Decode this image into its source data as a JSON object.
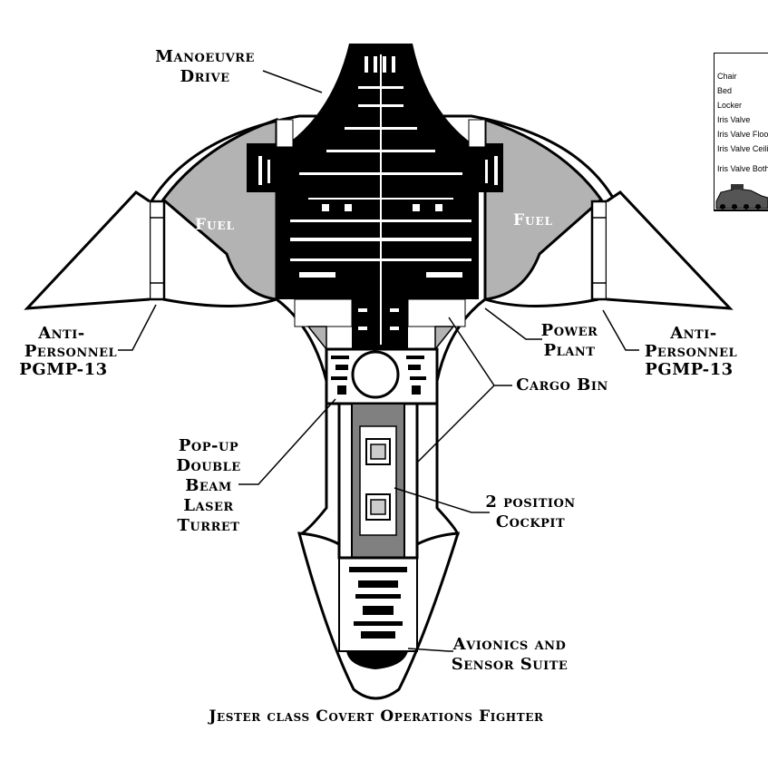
{
  "title": "Jester class Covert Operations Fighter",
  "labels": {
    "manoeuvre_line1": "Manoeuvre",
    "manoeuvre_line2": "Drive",
    "fuel_left": "Fuel",
    "fuel_right": "Fuel",
    "anti_left_1": "Anti-",
    "anti_left_2": "Personnel",
    "anti_left_3": "PGMP-13",
    "anti_right_1": "Anti-",
    "anti_right_2": "Personnel",
    "anti_right_3": "PGMP-13",
    "power_1": "Power",
    "power_2": "Plant",
    "cargo": "Cargo Bin",
    "popup_1": "Pop-up",
    "popup_2": "Double",
    "popup_3": "Beam",
    "popup_4": "Laser",
    "popup_5": "Turret",
    "cockpit_1": "2 position",
    "cockpit_2": "Cockpit",
    "avionics_1": "Avionics and",
    "avionics_2": "Sensor Suite"
  },
  "legend": {
    "items": [
      "Chair",
      "Bed",
      "Locker",
      "Iris Valve",
      "Iris Valve Floor",
      "Iris Valve Ceiling",
      "Iris Valve Both"
    ]
  },
  "colors": {
    "hull": "#000000",
    "fuel": "#b3b3b3",
    "cockpit": "#808080",
    "outline": "#000000"
  }
}
